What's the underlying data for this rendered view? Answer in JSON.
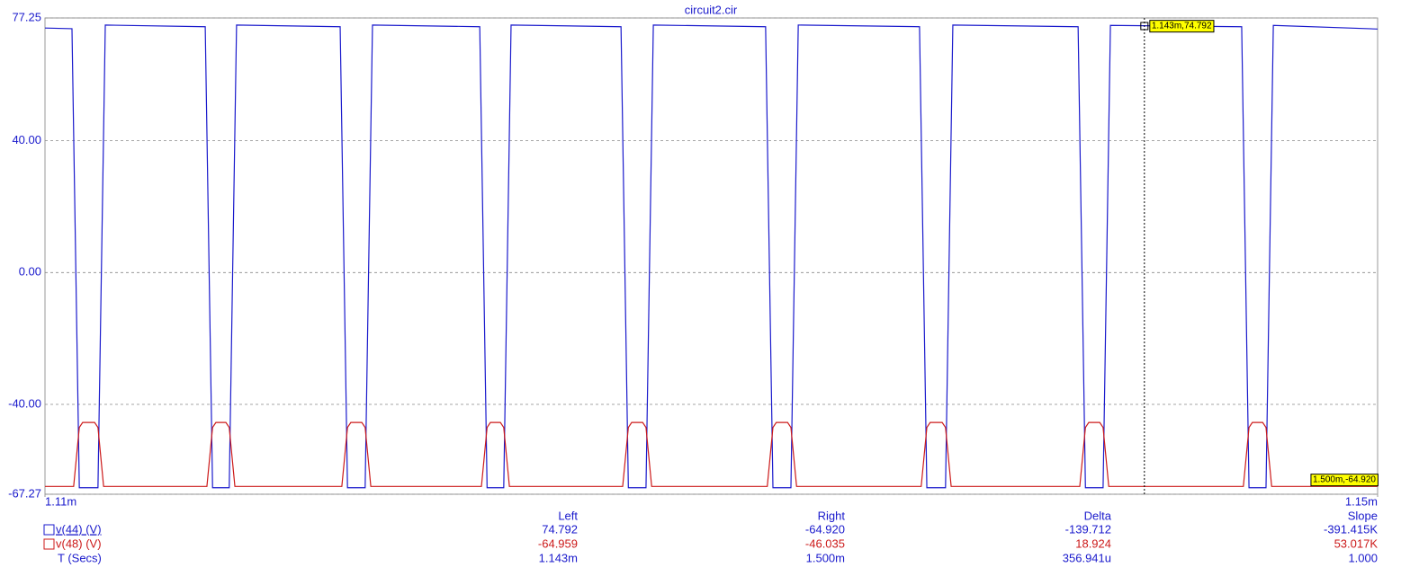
{
  "chart_data": {
    "type": "line",
    "title": "circuit2.cir",
    "xlim": [
      0.00111,
      0.00115
    ],
    "xticks": [
      {
        "value": 0.00111,
        "label": "1.11m"
      },
      {
        "value": 0.00115,
        "label": "1.15m"
      }
    ],
    "ylim": [
      -67.27,
      77.25
    ],
    "yticks": [
      {
        "value": 77.25,
        "label": "77.25"
      },
      {
        "value": 40,
        "label": "40.00"
      },
      {
        "value": 0,
        "label": "0.00"
      },
      {
        "value": -40,
        "label": "-40.00"
      },
      {
        "value": -67.27,
        "label": "-67.27"
      }
    ],
    "grid": true,
    "series": [
      {
        "name": "v(44) (V)",
        "color": "#1a1acc",
        "x": [
          0.00111,
          0.00111081,
          0.00111103,
          0.00111159,
          0.00111181,
          0.00111481,
          0.00111503,
          0.00111553,
          0.00111575,
          0.00111886,
          0.00111908,
          0.00111961,
          0.00111983,
          0.00112305,
          0.00112327,
          0.00112377,
          0.00112399,
          0.00112729,
          0.00112751,
          0.00112804,
          0.00112826,
          0.00113163,
          0.00113185,
          0.00113239,
          0.00113261,
          0.00113625,
          0.00113647,
          0.00113703,
          0.00113725,
          0.00114101,
          0.00114123,
          0.00114176,
          0.00114198,
          0.00114592,
          0.00114614,
          0.00114665,
          0.00114687,
          0.00115
        ],
        "values": [
          74.2,
          74.0,
          -65.3,
          -65.3,
          75.1,
          74.6,
          -65.3,
          -65.3,
          75.1,
          74.6,
          -65.3,
          -65.3,
          75.1,
          74.6,
          -65.3,
          -65.3,
          75.1,
          74.6,
          -65.3,
          -65.3,
          75.1,
          74.6,
          -65.3,
          -65.3,
          75.1,
          74.6,
          -65.3,
          -65.3,
          75.1,
          74.6,
          -65.3,
          -65.3,
          75.0,
          74.6,
          -65.3,
          -65.3,
          75.0,
          73.9
        ]
      },
      {
        "name": "v(48) (V)",
        "color": "#cc1a1a",
        "x": [
          0.00111,
          0.00111086,
          0.00111103,
          0.00111113,
          0.00111149,
          0.00111159,
          0.00111176,
          0.00111486,
          0.00111503,
          0.00111513,
          0.00111543,
          0.00111553,
          0.0011157,
          0.00111891,
          0.00111908,
          0.00111918,
          0.00111951,
          0.00111961,
          0.00111978,
          0.0011231,
          0.00112327,
          0.00112337,
          0.00112367,
          0.00112377,
          0.00112394,
          0.00112734,
          0.00112751,
          0.00112761,
          0.00112794,
          0.00112804,
          0.00112821,
          0.00113168,
          0.00113185,
          0.00113195,
          0.00113229,
          0.00113239,
          0.00113256,
          0.0011363,
          0.00113647,
          0.00113657,
          0.00113693,
          0.00113703,
          0.0011372,
          0.00114106,
          0.00114123,
          0.00114133,
          0.00114166,
          0.00114176,
          0.00114193,
          0.00114597,
          0.00114614,
          0.00114624,
          0.00114655,
          0.00114665,
          0.00114682,
          0.00115
        ],
        "values": [
          -64.9,
          -64.9,
          -47,
          -45.5,
          -45.5,
          -47,
          -64.9,
          -64.9,
          -47,
          -45.5,
          -45.5,
          -47,
          -64.9,
          -64.9,
          -47,
          -45.5,
          -45.5,
          -47,
          -64.9,
          -64.9,
          -47,
          -45.5,
          -45.5,
          -47,
          -64.9,
          -64.9,
          -47,
          -45.5,
          -45.5,
          -47,
          -64.9,
          -64.9,
          -47,
          -45.5,
          -45.5,
          -47,
          -64.9,
          -64.9,
          -47,
          -45.5,
          -45.5,
          -47,
          -64.9,
          -64.9,
          -47,
          -45.5,
          -45.5,
          -47,
          -64.9,
          -64.9,
          -47,
          -45.5,
          -45.5,
          -47,
          -64.9,
          -64.9
        ]
      }
    ],
    "cursor_x": 0.001143,
    "annotations": [
      "1.143m,74.792",
      "1.500m,-64.920"
    ],
    "cursor_table": {
      "columns": [
        "Left",
        "Right",
        "Delta",
        "Slope"
      ],
      "time_label": "T (Secs)",
      "rows": [
        [
          "74.792",
          "-64.920",
          "-139.712",
          "-391.415K"
        ],
        [
          "-64.959",
          "-46.035",
          "18.924",
          "53.017K"
        ],
        [
          "1.143m",
          "1.500m",
          "356.941u",
          "1.000"
        ]
      ]
    }
  }
}
